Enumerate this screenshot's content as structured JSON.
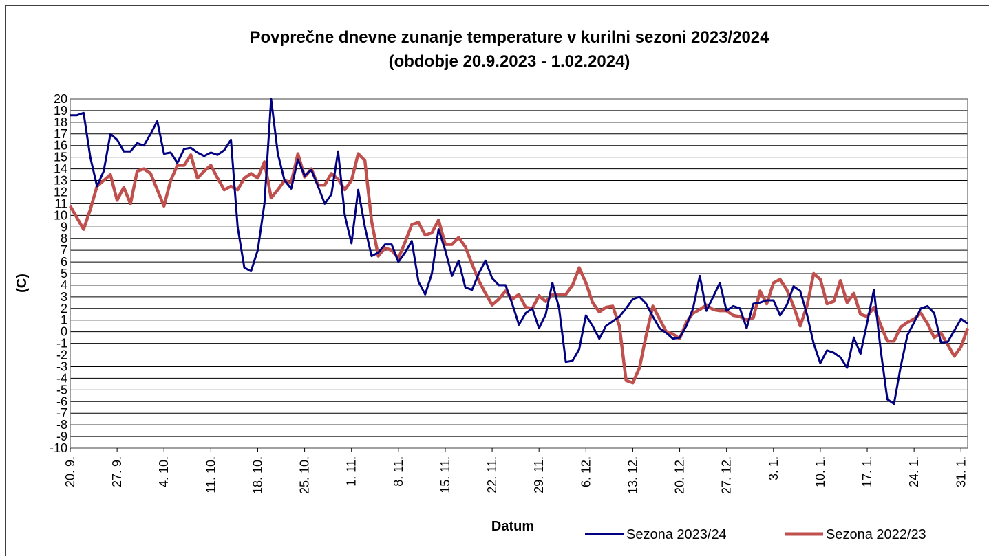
{
  "chart_data": {
    "type": "line",
    "title": "Povprečne dnevne zunanje temperature v kurilni sezoni 2023/2024",
    "subtitle": "(obdobje 20.9.2023 - 1.02.2024)",
    "x_label": "Datum",
    "y_label": "(C)",
    "categories": [
      "20. 9.",
      null,
      null,
      null,
      null,
      null,
      null,
      "27. 9.",
      null,
      null,
      null,
      null,
      null,
      null,
      "4. 10.",
      null,
      null,
      null,
      null,
      null,
      null,
      "11. 10.",
      null,
      null,
      null,
      null,
      null,
      null,
      "18. 10.",
      null,
      null,
      null,
      null,
      null,
      null,
      "25. 10.",
      null,
      null,
      null,
      null,
      null,
      null,
      "1. 11.",
      null,
      null,
      null,
      null,
      null,
      null,
      "8. 11.",
      null,
      null,
      null,
      null,
      null,
      null,
      "15. 11.",
      null,
      null,
      null,
      null,
      null,
      null,
      "22. 11.",
      null,
      null,
      null,
      null,
      null,
      null,
      "29. 11.",
      null,
      null,
      null,
      null,
      null,
      null,
      "6. 12.",
      null,
      null,
      null,
      null,
      null,
      null,
      "13. 12.",
      null,
      null,
      null,
      null,
      null,
      null,
      "20. 12.",
      null,
      null,
      null,
      null,
      null,
      null,
      "27. 12.",
      null,
      null,
      null,
      null,
      null,
      null,
      "3. 1.",
      null,
      null,
      null,
      null,
      null,
      null,
      "10. 1.",
      null,
      null,
      null,
      null,
      null,
      null,
      "17. 1.",
      null,
      null,
      null,
      null,
      null,
      null,
      "24. 1.",
      null,
      null,
      null,
      null,
      null,
      null,
      "31. 1.",
      null
    ],
    "series": [
      {
        "name": "Sezona 2023/24",
        "color": "#000080",
        "values": [
          18.6,
          18.6,
          18.8,
          15,
          12.5,
          13.8,
          17,
          16.5,
          15.5,
          15.5,
          16.2,
          16,
          17,
          18.1,
          15.3,
          15.4,
          14.5,
          15.7,
          15.8,
          15.4,
          15.1,
          15.4,
          15.2,
          15.6,
          16.5,
          9,
          5.5,
          5.2,
          7,
          11,
          20,
          15.3,
          13,
          12.3,
          14.8,
          13.4,
          13.9,
          12.5,
          11,
          11.8,
          15.5,
          10,
          7.6,
          12.2,
          9,
          6.5,
          6.8,
          7.5,
          7.5,
          6,
          6.8,
          7.8,
          4.3,
          3.2,
          5,
          8.8,
          7,
          4.8,
          6.1,
          3.8,
          3.6,
          5,
          6.1,
          4.6,
          4,
          4,
          2.4,
          0.6,
          1.6,
          2,
          0.3,
          1.5,
          4.2,
          2,
          -2.6,
          -2.5,
          -1.5,
          1.4,
          0.5,
          -0.6,
          0.5,
          0.9,
          1.3,
          2,
          2.8,
          3,
          2.4,
          1.3,
          0.3,
          -0.1,
          -0.6,
          -0.5,
          0.5,
          2,
          4.8,
          1.8,
          3,
          4.2,
          1.8,
          2.2,
          2,
          0.3,
          2.4,
          2.5,
          2.7,
          2.7,
          1.4,
          2.3,
          3.9,
          3.5,
          1.5,
          -1,
          -2.7,
          -1.6,
          -1.8,
          -2.2,
          -3.1,
          -0.5,
          -1.9,
          0.8,
          3.6,
          -1.5,
          -5.8,
          -6.2,
          -3,
          -0.3,
          0.8,
          2,
          2.2,
          1.6,
          -0.9,
          -0.9,
          0.1,
          1.1,
          0.7
        ]
      },
      {
        "name": "Sezona 2022/23",
        "color": "#c0504d",
        "values": [
          10.8,
          9.8,
          8.8,
          10.5,
          12.5,
          13,
          13.5,
          11.3,
          12.4,
          11,
          13.8,
          14,
          13.6,
          12.2,
          10.8,
          13,
          14.3,
          14.3,
          15.2,
          13.2,
          13.8,
          14.3,
          13.2,
          12.2,
          12.5,
          12.2,
          13.2,
          13.6,
          13.2,
          14.6,
          11.5,
          12.2,
          13,
          12.8,
          15.3,
          13.3,
          14,
          12.6,
          12.6,
          13.6,
          13.1,
          12.2,
          13,
          15.3,
          14.7,
          9.5,
          6.5,
          7.2,
          7,
          6.3,
          7.7,
          9.2,
          9.4,
          8.3,
          8.5,
          9.6,
          7.5,
          7.5,
          8.1,
          7.3,
          5.8,
          4.4,
          3.3,
          2.3,
          2.8,
          3.5,
          2.8,
          3.2,
          2.1,
          2,
          3.1,
          2.6,
          3.2,
          3.2,
          3.2,
          4,
          5.5,
          4.2,
          2.5,
          1.7,
          2.1,
          2.2,
          0.5,
          -4.2,
          -4.4,
          -3.1,
          -0.3,
          2.2,
          1.1,
          0,
          -0.2,
          -0.6,
          0.8,
          1.6,
          1.9,
          2.3,
          1.9,
          1.8,
          1.8,
          1.4,
          1.3,
          1,
          1.2,
          3.5,
          2.4,
          4.2,
          4.5,
          3.6,
          2.2,
          0.5,
          2.2,
          5,
          4.5,
          2.4,
          2.6,
          4.4,
          2.5,
          3.3,
          1.5,
          1.3,
          2.1,
          0.6,
          -0.8,
          -0.8,
          0.4,
          0.8,
          1.1,
          1.6,
          0.7,
          -0.5,
          -0.1,
          -1.1,
          -2.1,
          -1.3,
          0.3
        ]
      }
    ],
    "ylim": [
      -10,
      20
    ],
    "yticks": [
      -10,
      -9,
      -8,
      -7,
      -6,
      -5,
      -4,
      -3,
      -2,
      -1,
      0,
      1,
      2,
      3,
      4,
      5,
      6,
      7,
      8,
      9,
      10,
      11,
      12,
      13,
      14,
      15,
      16,
      17,
      18,
      19,
      20
    ],
    "grid": true
  }
}
